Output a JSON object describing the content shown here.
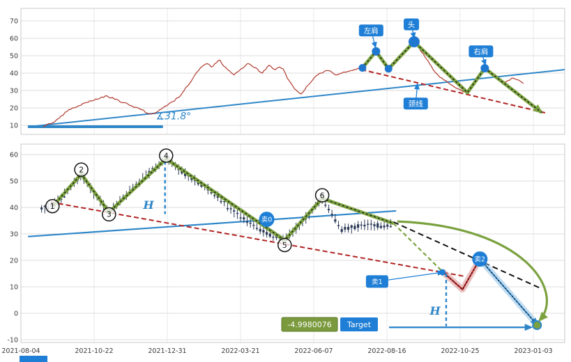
{
  "colors": {
    "price_red": "#b03a2e",
    "neck_red": "#b22222",
    "trend_blue": "#2e86c8",
    "box_blue": "#1f7fd6",
    "hs_green": "#7ba23f",
    "target_green": "#7a9a3d",
    "sell_red": "#c03030",
    "candle": "#2c3a57",
    "dot_blue": "#1f77d0",
    "grid": "#dcdcdc",
    "tick_text": "#3a3a3a"
  },
  "chart_data": [
    {
      "id": "top-price-chart",
      "type": "line",
      "title": "",
      "ylim": [
        5,
        78
      ],
      "yticks": [
        10,
        20,
        30,
        40,
        50,
        60,
        70
      ],
      "grid": true,
      "angle_text": "∡31.8°",
      "angle_pos": [
        0.248,
        13.5
      ],
      "baseline": {
        "p1": [
          0.015,
          9.2
        ],
        "p2": [
          0.259,
          9.2
        ]
      },
      "trendline": {
        "p1": [
          0.015,
          9.2
        ],
        "p2": [
          1.0,
          42
        ]
      },
      "neckline": {
        "p1": [
          0.626,
          42
        ],
        "p2": [
          0.964,
          17.2
        ]
      },
      "hs_path": [
        [
          0.628,
          43
        ],
        [
          0.653,
          52.5
        ],
        [
          0.676,
          42.5
        ],
        [
          0.723,
          58
        ],
        [
          0.821,
          28.8
        ],
        [
          0.853,
          42.8
        ],
        [
          0.957,
          17.5
        ]
      ],
      "dots": [
        [
          0.628,
          43,
          5.5
        ],
        [
          0.653,
          52.5,
          6
        ],
        [
          0.676,
          42.5,
          5.5
        ],
        [
          0.723,
          58,
          8
        ],
        [
          0.853,
          42.8,
          6
        ]
      ],
      "labels": [
        {
          "id": "left-shoulder",
          "text": "左肩",
          "box": [
            0.644,
            64.5
          ],
          "tip": [
            0.652,
            55
          ]
        },
        {
          "id": "head",
          "text": "头",
          "box": [
            0.718,
            68
          ],
          "tip": [
            0.723,
            60.5
          ]
        },
        {
          "id": "right-shoulder",
          "text": "右肩",
          "box": [
            0.846,
            52.5
          ],
          "tip": [
            0.854,
            45
          ]
        },
        {
          "id": "neckline-label",
          "text": "颈线",
          "box": [
            0.726,
            22.5
          ],
          "tip": [
            0.729,
            33.5
          ]
        }
      ],
      "price_anchors": [
        [
          0.041,
          9
        ],
        [
          0.055,
          11
        ],
        [
          0.07,
          14
        ],
        [
          0.085,
          18
        ],
        [
          0.095,
          20
        ],
        [
          0.11,
          21.5
        ],
        [
          0.13,
          24
        ],
        [
          0.145,
          25.5
        ],
        [
          0.158,
          27
        ],
        [
          0.172,
          25
        ],
        [
          0.19,
          23
        ],
        [
          0.205,
          21
        ],
        [
          0.222,
          19
        ],
        [
          0.232,
          17
        ],
        [
          0.24,
          16.5
        ],
        [
          0.252,
          18
        ],
        [
          0.265,
          21
        ],
        [
          0.278,
          23.5
        ],
        [
          0.29,
          26
        ],
        [
          0.3,
          30
        ],
        [
          0.31,
          34
        ],
        [
          0.32,
          39
        ],
        [
          0.33,
          43
        ],
        [
          0.342,
          45.5
        ],
        [
          0.35,
          43.5
        ],
        [
          0.36,
          46
        ],
        [
          0.366,
          47.5
        ],
        [
          0.373,
          44
        ],
        [
          0.38,
          42
        ],
        [
          0.392,
          39
        ],
        [
          0.4,
          41
        ],
        [
          0.405,
          42.5
        ],
        [
          0.412,
          44
        ],
        [
          0.418,
          45.5
        ],
        [
          0.425,
          44
        ],
        [
          0.432,
          43
        ],
        [
          0.438,
          41
        ],
        [
          0.444,
          40
        ],
        [
          0.45,
          42
        ],
        [
          0.456,
          44.5
        ],
        [
          0.462,
          43
        ],
        [
          0.468,
          42
        ],
        [
          0.476,
          43.5
        ],
        [
          0.482,
          42.5
        ],
        [
          0.49,
          37
        ],
        [
          0.497,
          34
        ],
        [
          0.503,
          31
        ],
        [
          0.51,
          29
        ],
        [
          0.515,
          28
        ],
        [
          0.522,
          30.5
        ],
        [
          0.528,
          33
        ],
        [
          0.535,
          35.5
        ],
        [
          0.54,
          37.5
        ],
        [
          0.546,
          39
        ],
        [
          0.552,
          40
        ],
        [
          0.558,
          41
        ],
        [
          0.565,
          41.5
        ],
        [
          0.572,
          40.5
        ],
        [
          0.578,
          39
        ],
        [
          0.585,
          39.5
        ],
        [
          0.59,
          40
        ],
        [
          0.597,
          40.5
        ],
        [
          0.603,
          41
        ],
        [
          0.61,
          41.5
        ],
        [
          0.616,
          42
        ],
        [
          0.622,
          42.5
        ],
        [
          0.628,
          43
        ],
        [
          0.634,
          45
        ],
        [
          0.64,
          47
        ],
        [
          0.647,
          50
        ],
        [
          0.653,
          52.5
        ],
        [
          0.658,
          50.5
        ],
        [
          0.663,
          48
        ],
        [
          0.67,
          45
        ],
        [
          0.676,
          42.5
        ],
        [
          0.683,
          44
        ],
        [
          0.69,
          46
        ],
        [
          0.696,
          48.5
        ],
        [
          0.703,
          51
        ],
        [
          0.708,
          53.5
        ],
        [
          0.714,
          55.5
        ],
        [
          0.719,
          57
        ],
        [
          0.723,
          58
        ],
        [
          0.728,
          56
        ],
        [
          0.733,
          54
        ],
        [
          0.74,
          51
        ],
        [
          0.746,
          48
        ],
        [
          0.752,
          45
        ],
        [
          0.758,
          42
        ],
        [
          0.765,
          39.5
        ],
        [
          0.771,
          37.5
        ],
        [
          0.778,
          36
        ],
        [
          0.784,
          35
        ],
        [
          0.79,
          33.5
        ],
        [
          0.797,
          32
        ],
        [
          0.804,
          31
        ],
        [
          0.81,
          30
        ],
        [
          0.816,
          29.2
        ],
        [
          0.821,
          28.8
        ],
        [
          0.827,
          31
        ],
        [
          0.833,
          34
        ],
        [
          0.839,
          37
        ],
        [
          0.845,
          40.5
        ],
        [
          0.85,
          42
        ],
        [
          0.853,
          42.8
        ],
        [
          0.859,
          41
        ],
        [
          0.865,
          39.6
        ],
        [
          0.871,
          38.5
        ],
        [
          0.877,
          37
        ],
        [
          0.883,
          36
        ],
        [
          0.889,
          34.8
        ],
        [
          0.896,
          35.8
        ],
        [
          0.902,
          37
        ],
        [
          0.909,
          36.5
        ],
        [
          0.915,
          36
        ],
        [
          0.92,
          35
        ],
        [
          0.924,
          34
        ]
      ]
    },
    {
      "id": "bottom-zigzag-chart",
      "type": "candlestick",
      "title": "",
      "ylim": [
        -13,
        64
      ],
      "yticks": [
        -10,
        0,
        10,
        20,
        30,
        40,
        50,
        60
      ],
      "grid": true,
      "xtick_labels": [
        "2021-08-04",
        "2021-10-22",
        "2021-12-31",
        "2022-03-21",
        "2022-06-07",
        "2022-08-16",
        "2022-10-25",
        "2023-01-03"
      ],
      "candle_pivots": [
        [
          0.038,
          39.5
        ],
        [
          0.06,
          40.8
        ],
        [
          0.085,
          46
        ],
        [
          0.111,
          52.6
        ],
        [
          0.135,
          45
        ],
        [
          0.162,
          38.2
        ],
        [
          0.2,
          46
        ],
        [
          0.235,
          53
        ],
        [
          0.267,
          58.4
        ],
        [
          0.3,
          53
        ],
        [
          0.35,
          46
        ],
        [
          0.4,
          37
        ],
        [
          0.45,
          30.5
        ],
        [
          0.485,
          27.6
        ],
        [
          0.52,
          35
        ],
        [
          0.554,
          43.4
        ],
        [
          0.57,
          38
        ],
        [
          0.59,
          31.5
        ],
        [
          0.61,
          32.5
        ],
        [
          0.64,
          33.5
        ],
        [
          0.663,
          33
        ],
        [
          0.685,
          33.8
        ]
      ],
      "zigzag": [
        [
          0.06,
          40.8
        ],
        [
          0.111,
          52.6
        ],
        [
          0.162,
          38.2
        ],
        [
          0.267,
          58.4
        ],
        [
          0.485,
          27.6
        ],
        [
          0.554,
          43.4
        ],
        [
          0.685,
          34.0
        ]
      ],
      "pivot_labels": [
        {
          "n": "1",
          "pos": [
            0.058,
            40.5
          ]
        },
        {
          "n": "2",
          "pos": [
            0.111,
            54.3
          ]
        },
        {
          "n": "3",
          "pos": [
            0.162,
            37.4
          ]
        },
        {
          "n": "4",
          "pos": [
            0.267,
            59.6
          ]
        },
        {
          "n": "5",
          "pos": [
            0.485,
            25.8
          ]
        },
        {
          "n": "6",
          "pos": [
            0.554,
            44.6
          ]
        }
      ],
      "uptrend": {
        "p1": [
          0.013,
          29
        ],
        "p2": [
          0.69,
          38.7
        ]
      },
      "downtrend_red": {
        "p1": [
          0.055,
          42
        ],
        "p2": [
          0.815,
          14
        ]
      },
      "downtrend_black": {
        "p1": [
          0.685,
          34.5
        ],
        "p2": [
          0.955,
          9.5
        ]
      },
      "sell_dashed_green": {
        "p1": [
          0.685,
          34.0
        ],
        "p2": [
          0.775,
          15.8
        ]
      },
      "red_v": [
        [
          0.775,
          15.8
        ],
        [
          0.812,
          9.0
        ],
        [
          0.844,
          20.5
        ]
      ],
      "blue_drop": [
        [
          0.844,
          20.5
        ],
        [
          0.949,
          -4.3
        ]
      ],
      "curve": {
        "p0": [
          0.692,
          34.7
        ],
        "c1": [
          0.929,
          32.9
        ],
        "c2": [
          1.0,
          7.9
        ],
        "p3": [
          0.954,
          -2.6
        ]
      },
      "vlines": [
        {
          "x": 0.265,
          "y1": 57.5,
          "y2": 37.5
        },
        {
          "x": 0.782,
          "y1": 15.0,
          "y2": -4.9
        }
      ],
      "h_labels": [
        {
          "text": "H",
          "pos": [
            0.225,
            39.5
          ]
        },
        {
          "text": "H",
          "pos": [
            0.752,
            -0.5
          ]
        }
      ],
      "h_arrow": {
        "p1": [
          0.677,
          -5.3
        ],
        "p2": [
          0.938,
          -5.3
        ]
      },
      "sell_circles": [
        {
          "id": "sell-0",
          "text": "卖0",
          "pos": [
            0.452,
            35.5
          ]
        },
        {
          "id": "sell-2",
          "text": "卖2",
          "pos": [
            0.844,
            20.5
          ]
        }
      ],
      "sell1": {
        "text": "卖1",
        "box": [
          0.655,
          12.0
        ],
        "tip": [
          0.775,
          15.5
        ]
      },
      "target_dot": [
        0.949,
        -4.5
      ],
      "target_value": "-4.9980076",
      "target_label": "Target"
    }
  ]
}
